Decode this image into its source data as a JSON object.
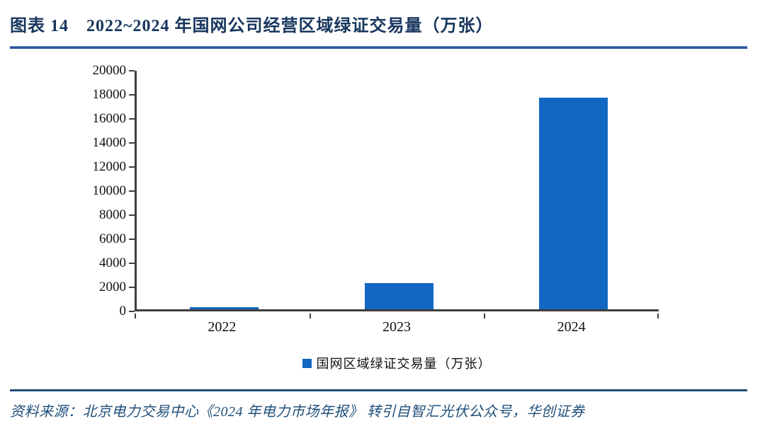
{
  "figure": {
    "title": "图表 14　2022~2024 年国网公司经营区域绿证交易量（万张）",
    "source": "资料来源：北京电力交易中心《2024 年电力市场年报》 转引自智汇光伏公众号，华创证券"
  },
  "chart_data": {
    "type": "bar",
    "title": "2022~2024 年国网公司经营区域绿证交易量（万张）",
    "categories": [
      "2022",
      "2023",
      "2024"
    ],
    "series": [
      {
        "name": "国网区域绿证交易量（万张）",
        "values": [
          150,
          2200,
          17600
        ]
      }
    ],
    "xlabel": "",
    "ylabel": "",
    "ylim": [
      0,
      20000
    ],
    "yticks": [
      0,
      2000,
      4000,
      6000,
      8000,
      10000,
      12000,
      14000,
      16000,
      18000,
      20000
    ],
    "grid": false,
    "legend_position": "bottom",
    "bar_color": "#1267C2"
  },
  "colors": {
    "title_text": "#17365D",
    "rule_top": "#2B5899",
    "rule_bottom": "#1F4E79",
    "source_text": "#1F4E79",
    "axis": "#3F3F3F",
    "bar": "#1267C2"
  }
}
